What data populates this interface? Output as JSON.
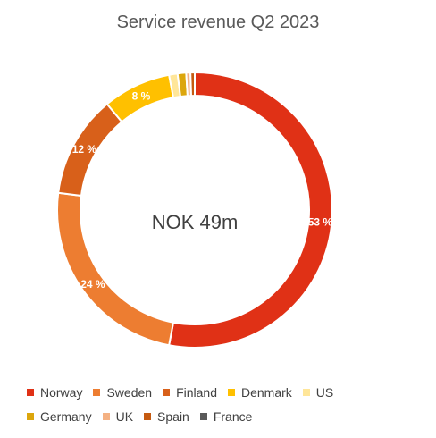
{
  "chart_data": {
    "type": "pie",
    "title": "Service revenue Q2 2023",
    "center_label": "NOK 49m",
    "slices": [
      {
        "name": "Norway",
        "value": 53,
        "label": "53 %",
        "color": "#E03116"
      },
      {
        "name": "Sweden",
        "value": 24,
        "label": "24 %",
        "color": "#ED7D31"
      },
      {
        "name": "Finland",
        "value": 12,
        "label": "12 %",
        "color": "#D8601A"
      },
      {
        "name": "Denmark",
        "value": 8,
        "label": "8 %",
        "color": "#FFC000"
      },
      {
        "name": "US",
        "value": 1,
        "label": "",
        "color": "#FFE699"
      },
      {
        "name": "Germany",
        "value": 1,
        "label": "",
        "color": "#DCA60C"
      },
      {
        "name": "UK",
        "value": 0.5,
        "label": "",
        "color": "#F4B183"
      },
      {
        "name": "Spain",
        "value": 0.5,
        "label": "",
        "color": "#C55A11"
      },
      {
        "name": "France",
        "value": 0,
        "label": "",
        "color": "#595959"
      }
    ],
    "legend_placement": "bottom"
  }
}
